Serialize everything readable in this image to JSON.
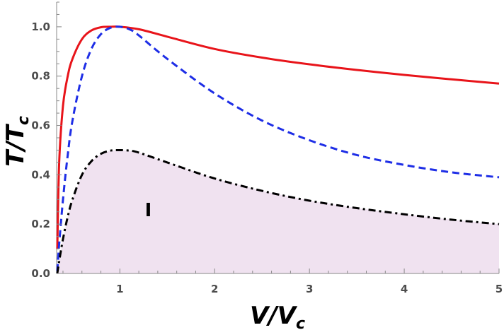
{
  "chart_data": {
    "type": "line",
    "xlabel": {
      "main": "V/V",
      "sub": "c"
    },
    "ylabel": {
      "main": "T/T",
      "sub": "c"
    },
    "xlim": [
      0.333,
      5
    ],
    "ylim": [
      0,
      1.1
    ],
    "x_ticks": [
      1,
      2,
      3,
      4,
      5
    ],
    "y_ticks": [
      0.0,
      0.2,
      0.4,
      0.6,
      0.8,
      1.0
    ],
    "x_tick_labels": [
      "1",
      "2",
      "3",
      "4",
      "5"
    ],
    "y_tick_labels": [
      "0.0",
      "0.2",
      "0.4",
      "0.6",
      "0.8",
      "1.0"
    ],
    "grid": false,
    "series": [
      {
        "style": "solid",
        "color": "#e8141a",
        "x": [
          0.34,
          0.36,
          0.4,
          0.45,
          0.5,
          0.6,
          0.7,
          0.8,
          0.9,
          1.0,
          1.2,
          1.5,
          2.0,
          2.5,
          3.0,
          3.5,
          4.0,
          4.5,
          5.0
        ],
        "y": [
          0.1,
          0.45,
          0.68,
          0.8,
          0.87,
          0.95,
          0.985,
          0.998,
          1.0,
          1.0,
          0.99,
          0.96,
          0.91,
          0.875,
          0.848,
          0.825,
          0.805,
          0.787,
          0.77
        ]
      },
      {
        "style": "dashed",
        "color": "#1e2ee6",
        "x": [
          0.34,
          0.36,
          0.4,
          0.45,
          0.5,
          0.6,
          0.7,
          0.8,
          0.9,
          1.0,
          1.1,
          1.2,
          1.5,
          2.0,
          2.5,
          3.0,
          3.5,
          4.0,
          4.5,
          5.0
        ],
        "y": [
          0.01,
          0.12,
          0.3,
          0.48,
          0.62,
          0.8,
          0.91,
          0.97,
          0.996,
          1.0,
          0.99,
          0.965,
          0.87,
          0.73,
          0.62,
          0.54,
          0.48,
          0.44,
          0.41,
          0.39
        ]
      },
      {
        "style": "dashdot",
        "color": "#000000",
        "fill": "#f0e2f0",
        "x": [
          0.34,
          0.36,
          0.4,
          0.45,
          0.5,
          0.6,
          0.7,
          0.8,
          0.9,
          1.0,
          1.1,
          1.2,
          1.5,
          2.0,
          2.5,
          3.0,
          3.5,
          4.0,
          4.5,
          5.0
        ],
        "y": [
          0.0,
          0.05,
          0.14,
          0.23,
          0.3,
          0.4,
          0.455,
          0.485,
          0.498,
          0.5,
          0.498,
          0.49,
          0.45,
          0.385,
          0.335,
          0.295,
          0.265,
          0.24,
          0.218,
          0.2
        ]
      }
    ],
    "annotations": [
      {
        "text": "I",
        "x": 1.3,
        "y": 0.26
      }
    ]
  }
}
